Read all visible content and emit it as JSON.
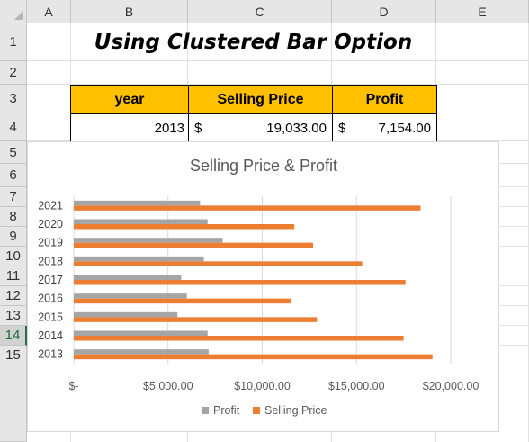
{
  "spreadsheet": {
    "columns": [
      "A",
      "B",
      "C",
      "D",
      "E"
    ],
    "rows": [
      "1",
      "2",
      "3",
      "4",
      "5",
      "6",
      "7",
      "8",
      "9",
      "10",
      "11",
      "12",
      "13",
      "14",
      "15"
    ],
    "active_row": "14",
    "title": "Using Clustered Bar Option",
    "table": {
      "headers": [
        "year",
        "Selling Price",
        "Profit"
      ],
      "row": {
        "year": "2013",
        "selling_currency": "$",
        "selling_value": "19,033.00",
        "profit_currency": "$",
        "profit_value": "7,154.00"
      }
    }
  },
  "colors": {
    "header_fill": "#ffc000",
    "selling_price_bar": "#ed7d31",
    "profit_bar": "#a5a5a5"
  },
  "chart_data": {
    "type": "bar",
    "orientation": "horizontal",
    "title": "Selling Price & Profit",
    "categories": [
      "2013",
      "2014",
      "2015",
      "2016",
      "2017",
      "2018",
      "2019",
      "2020",
      "2021"
    ],
    "series": [
      {
        "name": "Profit",
        "color": "#a5a5a5",
        "values": [
          7154,
          7100,
          5500,
          6000,
          5700,
          6900,
          7900,
          7100,
          6700
        ]
      },
      {
        "name": "Selling Price",
        "color": "#ed7d31",
        "values": [
          19033,
          17500,
          12900,
          11500,
          17600,
          15300,
          12700,
          11700,
          18400
        ]
      }
    ],
    "xlim": [
      0,
      20000
    ],
    "x_ticks": [
      0,
      5000,
      10000,
      15000,
      20000
    ],
    "x_tick_labels": [
      "$-",
      "$5,000.00",
      "$10,000.00",
      "$15,000.00",
      "$20,000.00"
    ],
    "grid": true,
    "legend_position": "bottom",
    "legend": [
      "Profit",
      "Selling Price"
    ]
  }
}
